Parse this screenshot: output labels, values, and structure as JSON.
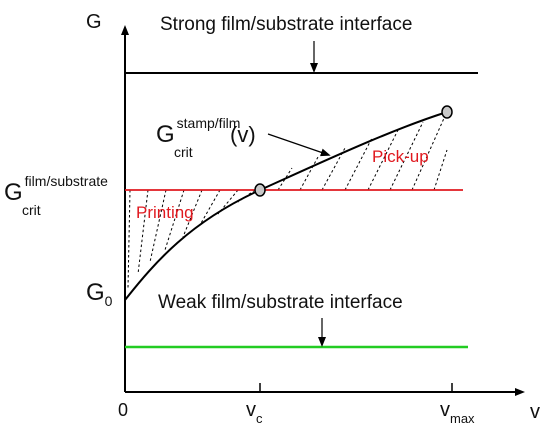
{
  "axes": {
    "y_label": "G",
    "x_label": "v",
    "origin_label": "0",
    "vc": {
      "base": "v",
      "sub": "c"
    },
    "vmax": {
      "base": "v",
      "sub": "max"
    },
    "g0": {
      "base": "G",
      "sub": "0"
    }
  },
  "strong_interface": {
    "label": "Strong film/substrate interface",
    "color": "#000000"
  },
  "weak_interface": {
    "label": "Weak film/substrate interface",
    "color": "#22cc22"
  },
  "critical_substrate": {
    "base": "G",
    "sup": "film/substrate",
    "sub": "crit",
    "color": "#e0191f"
  },
  "stamp_curve": {
    "base": "G",
    "sup": "stamp/film",
    "sub": "crit",
    "arg": "(v)"
  },
  "regions": {
    "printing": "Printing",
    "pickup": "Pick-up"
  },
  "colors": {
    "axis": "#000000",
    "curve": "#000000",
    "hatch": "#000000",
    "marker_fill": "#c8c8c8"
  }
}
